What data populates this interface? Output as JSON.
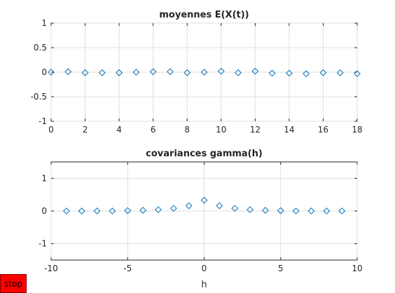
{
  "controls": {
    "stop_label": "stop"
  },
  "colors": {
    "marker": "#0072bd",
    "grid": "#dfdfdf",
    "axis": "#262626",
    "stop_button": "#ff0000"
  },
  "chart_data": [
    {
      "type": "scatter",
      "title": "moyennes E(X(t))",
      "xlabel": "",
      "ylabel": "",
      "xlim": [
        0,
        18
      ],
      "ylim": [
        -1,
        1
      ],
      "grid": true,
      "marker": "diamond-open",
      "xticks": [
        "0",
        "2",
        "4",
        "6",
        "8",
        "10",
        "12",
        "14",
        "16",
        "18"
      ],
      "yticks": [
        "-1",
        "-0.5",
        "0",
        "0.5",
        "1"
      ],
      "xtick_values": [
        0,
        2,
        4,
        6,
        8,
        10,
        12,
        14,
        16,
        18
      ],
      "ytick_values": [
        -1,
        -0.5,
        0,
        0.5,
        1
      ],
      "x": [
        0,
        1,
        2,
        3,
        4,
        5,
        6,
        7,
        8,
        9,
        10,
        11,
        12,
        13,
        14,
        15,
        16,
        17,
        18
      ],
      "y": [
        0.0,
        0.01,
        -0.01,
        -0.01,
        -0.01,
        0.0,
        0.01,
        0.01,
        -0.01,
        0.0,
        0.02,
        -0.01,
        0.02,
        -0.02,
        -0.02,
        -0.03,
        -0.01,
        -0.01,
        -0.03
      ]
    },
    {
      "type": "scatter",
      "title": "covariances gamma(h)",
      "xlabel": "h",
      "ylabel": "",
      "xlim": [
        -10,
        10
      ],
      "ylim": [
        -1.5,
        1.5
      ],
      "grid": true,
      "marker": "diamond-open",
      "xticks": [
        "-10",
        "-5",
        "0",
        "5",
        "10"
      ],
      "yticks": [
        "-1",
        "0",
        "1"
      ],
      "xtick_values": [
        -10,
        -5,
        0,
        5,
        10
      ],
      "ytick_values": [
        -1,
        0,
        1
      ],
      "x": [
        -9,
        -8,
        -7,
        -6,
        -5,
        -4,
        -3,
        -2,
        -1,
        0,
        1,
        2,
        3,
        4,
        5,
        6,
        7,
        8,
        9
      ],
      "y": [
        0.0,
        0.0,
        0.0,
        0.0,
        0.01,
        0.02,
        0.04,
        0.08,
        0.16,
        0.33,
        0.16,
        0.08,
        0.04,
        0.02,
        0.01,
        0.0,
        0.0,
        0.0,
        0.0
      ]
    }
  ]
}
